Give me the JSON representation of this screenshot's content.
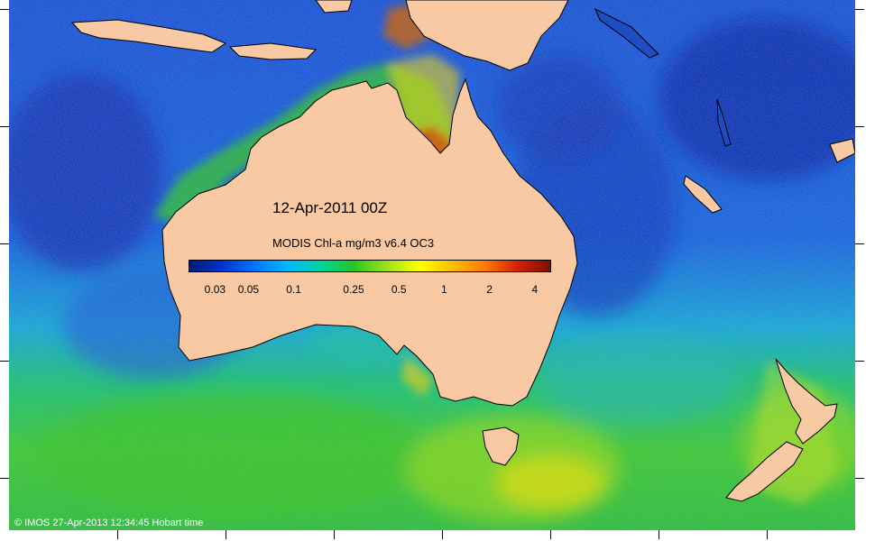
{
  "map": {
    "date_label": "12-Apr-2011 00Z",
    "product_label": "MODIS Chl-a mg/m3 v6.4 OC3",
    "credit": "© IMOS 27-Apr-2013 12:34:45 Hobart time",
    "land_color": "#f8c9a3",
    "missing_color": "#ffffff",
    "icon": "coastline-map"
  },
  "legend": {
    "scale": "log",
    "range": [
      0.02,
      5
    ],
    "colors": [
      "#001a7a",
      "#0033cc",
      "#0077ff",
      "#00b8ff",
      "#00d4a0",
      "#22c722",
      "#9be21a",
      "#ffff00",
      "#ffc000",
      "#ff7a00",
      "#d62000",
      "#7a1200"
    ],
    "ticks": [
      {
        "value": 0.03,
        "label": "0.03"
      },
      {
        "value": 0.05,
        "label": "0.05"
      },
      {
        "value": 0.1,
        "label": "0.1"
      },
      {
        "value": 0.25,
        "label": "0.25"
      },
      {
        "value": 0.5,
        "label": "0.5"
      },
      {
        "value": 1,
        "label": "1"
      },
      {
        "value": 2,
        "label": "2"
      },
      {
        "value": 4,
        "label": "4"
      }
    ]
  }
}
